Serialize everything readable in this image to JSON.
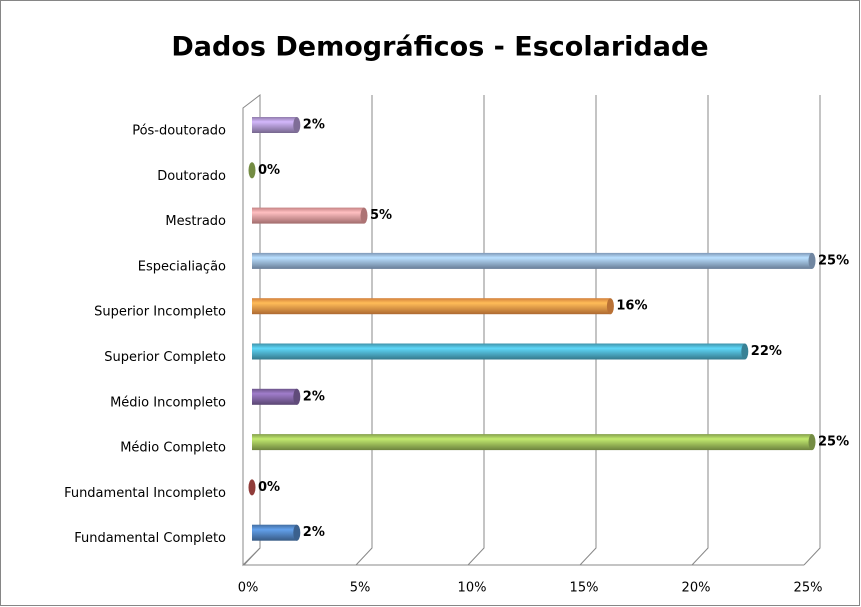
{
  "chart_data": {
    "type": "bar",
    "orientation": "horizontal",
    "title": "Dados Demográficos - Escolaridade",
    "categories": [
      "Pós-doutorado",
      "Doutorado",
      "Mestrado",
      "Especialiação",
      "Superior Incompleto",
      "Superior Completo",
      "Médio Incompleto",
      "Médio Completo",
      "Fundamental Incompleto",
      "Fundamental Completo"
    ],
    "values": [
      2,
      0,
      5,
      25,
      16,
      22,
      2,
      25,
      0,
      2
    ],
    "value_labels": [
      "2%",
      "0%",
      "5%",
      "25%",
      "16%",
      "22%",
      "2%",
      "25%",
      "0%",
      "2%"
    ],
    "colors": [
      "#a992c9",
      "#9bbb59",
      "#e6999a",
      "#95b3d7",
      "#f79646",
      "#4bacc6",
      "#8064a2",
      "#9bbb59",
      "#c0504d",
      "#4f81bd"
    ],
    "xlim": [
      0,
      25
    ],
    "xticks": [
      {
        "value": 0,
        "label": "0%"
      },
      {
        "value": 5,
        "label": "5%"
      },
      {
        "value": 10,
        "label": "10%"
      },
      {
        "value": 15,
        "label": "15%"
      },
      {
        "value": 20,
        "label": "20%"
      },
      {
        "value": 25,
        "label": "25%"
      }
    ],
    "grid": true
  }
}
